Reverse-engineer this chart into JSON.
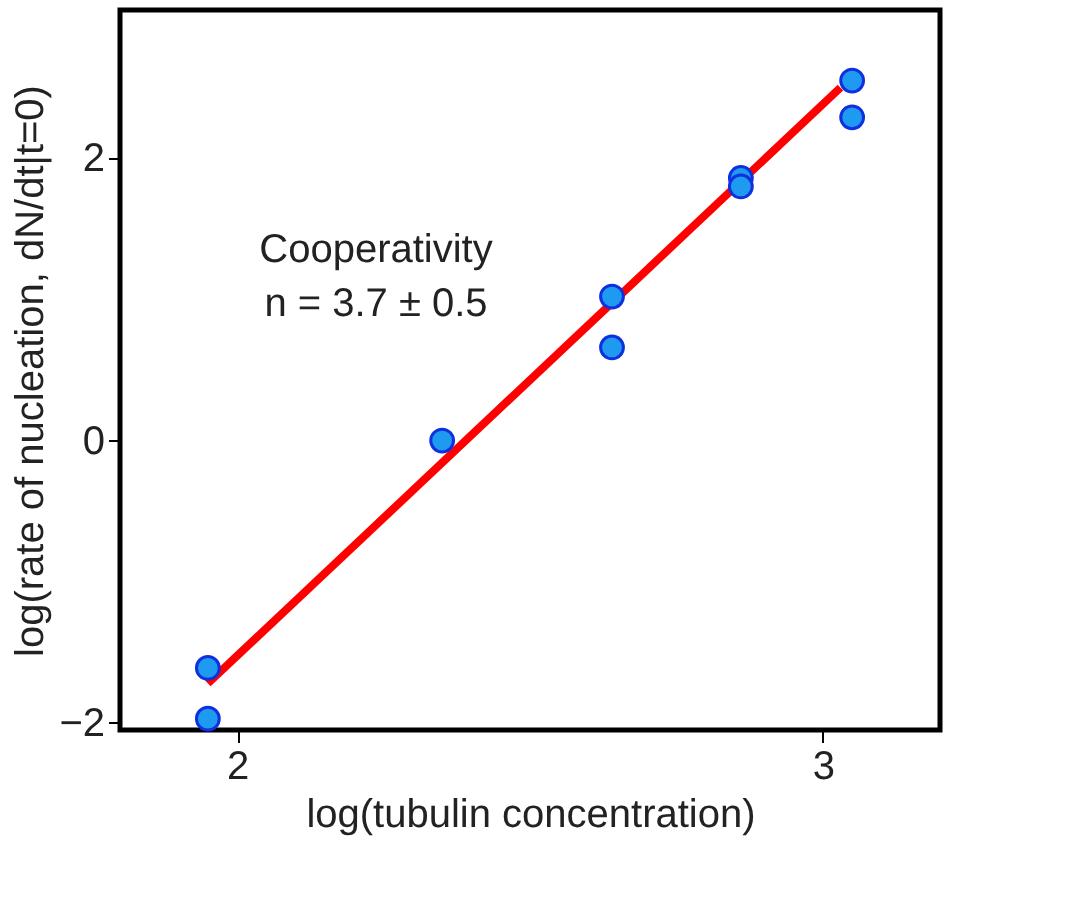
{
  "chart_data": {
    "type": "scatter",
    "xlabel": "log(tubulin concentration)",
    "ylabel": "log(rate of nucleation, dN/dt|t=0)",
    "xlim": [
      1.8,
      3.2
    ],
    "ylim": [
      -2.05,
      3.05
    ],
    "xticks": [
      2,
      3
    ],
    "yticks": [
      -2,
      0,
      2
    ],
    "grid": false,
    "annotations": [
      "Cooperativity",
      "n = 3.7 ± 0.5"
    ],
    "series": [
      {
        "color": "#1e9bf0",
        "marker": "circle",
        "x": [
          1.95,
          1.95,
          2.35,
          2.64,
          2.64,
          2.86,
          2.86,
          3.05,
          3.05
        ],
        "values": [
          -1.61,
          -1.97,
          0.0,
          1.02,
          0.66,
          1.86,
          1.8,
          2.55,
          2.29
        ]
      },
      {
        "type": "line",
        "color": "#ff0000",
        "marker": "none",
        "line_style": "solid",
        "x": [
          1.95,
          3.03
        ],
        "values": [
          -1.72,
          2.5
        ]
      }
    ]
  }
}
